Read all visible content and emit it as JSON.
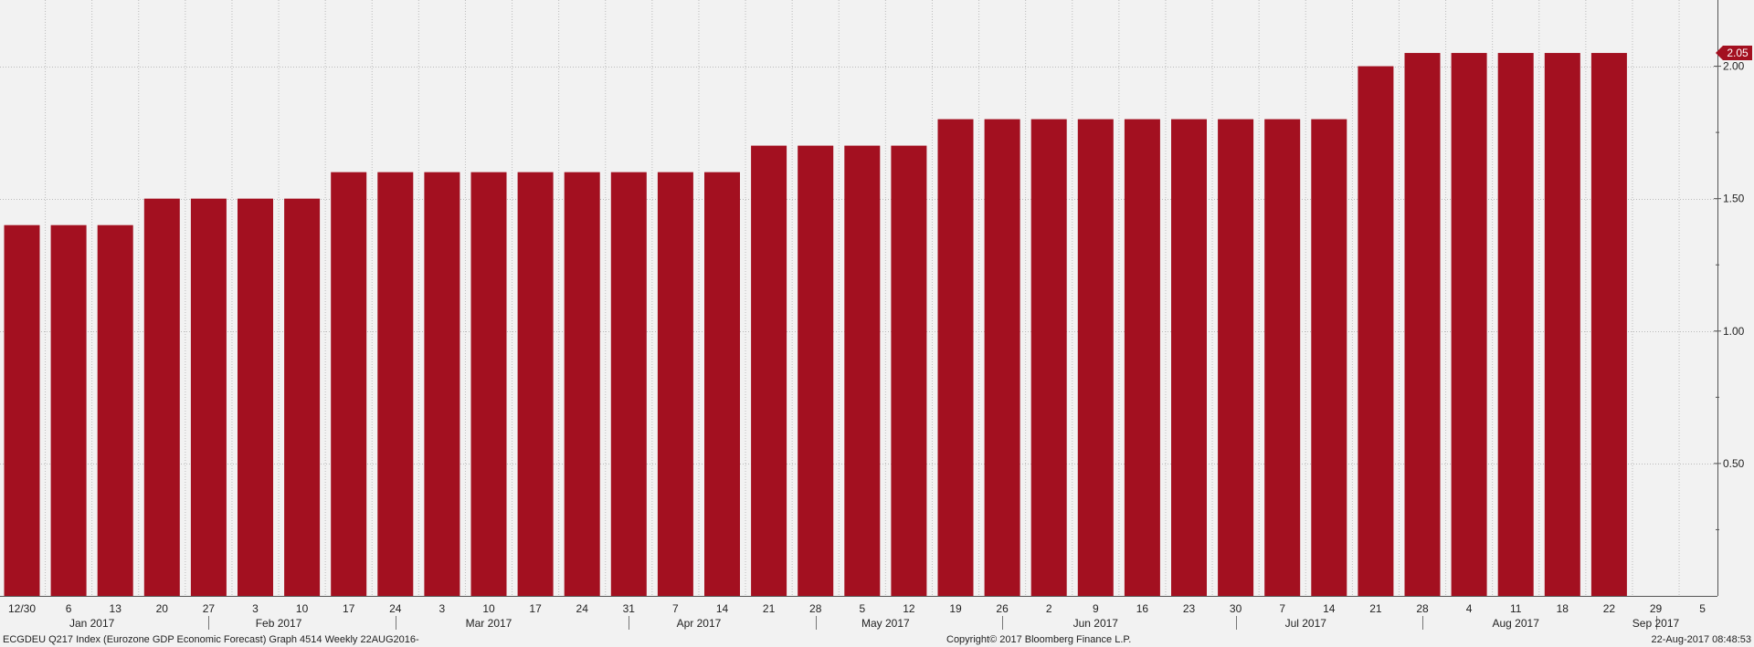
{
  "chart_data": {
    "type": "bar",
    "categories": [
      "12/30",
      "6",
      "13",
      "20",
      "27",
      "3",
      "10",
      "17",
      "24",
      "3",
      "10",
      "17",
      "24",
      "31",
      "7",
      "14",
      "21",
      "28",
      "5",
      "12",
      "19",
      "26",
      "2",
      "9",
      "16",
      "23",
      "30",
      "7",
      "14",
      "21",
      "28",
      "4",
      "11",
      "18",
      "22"
    ],
    "values": [
      1.4,
      1.4,
      1.4,
      1.5,
      1.5,
      1.5,
      1.5,
      1.6,
      1.6,
      1.6,
      1.6,
      1.6,
      1.6,
      1.6,
      1.6,
      1.6,
      1.7,
      1.7,
      1.7,
      1.7,
      1.8,
      1.8,
      1.8,
      1.8,
      1.8,
      1.8,
      1.8,
      1.8,
      1.8,
      2.0,
      2.05,
      2.05,
      2.05,
      2.05,
      2.05
    ],
    "extra_ticks": [
      "29",
      "5"
    ],
    "month_labels": [
      {
        "label": "Jan 2017",
        "span": [
          1,
          4
        ]
      },
      {
        "label": "Feb 2017",
        "span": [
          5,
          8
        ]
      },
      {
        "label": "Mar 2017",
        "span": [
          9,
          13
        ]
      },
      {
        "label": "Apr 2017",
        "span": [
          14,
          17
        ]
      },
      {
        "label": "May 2017",
        "span": [
          18,
          21
        ]
      },
      {
        "label": "Jun 2017",
        "span": [
          22,
          26
        ]
      },
      {
        "label": "Jul 2017",
        "span": [
          27,
          30
        ]
      },
      {
        "label": "Aug 2017",
        "span": [
          31,
          35
        ]
      },
      {
        "label": "Sep 2017",
        "span": [
          36,
          36
        ]
      }
    ],
    "yticks": [
      {
        "value": 0.5,
        "label": "0.50"
      },
      {
        "value": 1.0,
        "label": "1.00"
      },
      {
        "value": 1.5,
        "label": "1.50"
      },
      {
        "value": 2.0,
        "label": "2.00"
      }
    ],
    "ylim": [
      0,
      2.25
    ],
    "last_value_label": "2.05",
    "grid": true,
    "colors": {
      "bar": "#a31020",
      "badge": "#a31020",
      "grid": "#bbbbbb",
      "background": "#f2f2f2"
    }
  },
  "footer": {
    "left": "ECGDEU Q217 Index (Eurozone GDP Economic Forecast) Graph 4514  Weekly 22AUG2016-",
    "center": "Copyright© 2017 Bloomberg Finance L.P.",
    "right": "22-Aug-2017 08:48:53"
  }
}
